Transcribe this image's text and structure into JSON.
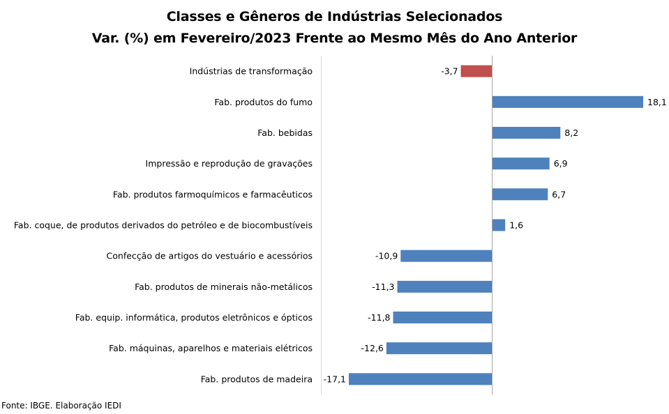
{
  "chart_data": {
    "type": "bar",
    "orientation": "horizontal",
    "title": [
      "Classes e Gêneros de Indústrias Selecionados",
      "Var. (%) em Fevereiro/2023 Frente ao Mesmo Mês do Ano Anterior"
    ],
    "categories": [
      "Indústrias de transformação",
      "Fab. produtos do fumo",
      "Fab. bebidas",
      "Impressão e reprodução de gravações",
      "Fab. produtos farmoquímicos e farmacêuticos",
      "Fab. coque, de produtos derivados do petróleo e de biocombustíveis",
      "Confecção de artigos do vestuário e acessórios",
      "Fab. produtos de minerais não-metálicos",
      "Fab. equip. informática, produtos eletrônicos e ópticos",
      "Fab. máquinas, aparelhos e materiais elétricos",
      "Fab. produtos de madeira"
    ],
    "values": [
      -3.7,
      18.1,
      8.2,
      6.9,
      6.7,
      1.6,
      -10.9,
      -11.3,
      -11.8,
      -12.6,
      -17.1
    ],
    "value_labels": [
      "-3,7",
      "18,1",
      "8,2",
      "6,9",
      "6,7",
      "1,6",
      "-10,9",
      "-11,3",
      "-11,8",
      "-12,6",
      "-17,1"
    ],
    "xlim": [
      -18,
      20
    ],
    "grid": false,
    "legend": "none",
    "colors": {
      "highlight": "#C0504D",
      "default": "#4F81BD",
      "axis": "#A6A6A6"
    }
  },
  "source": "Fonte: IBGE. Elaboração IEDI"
}
